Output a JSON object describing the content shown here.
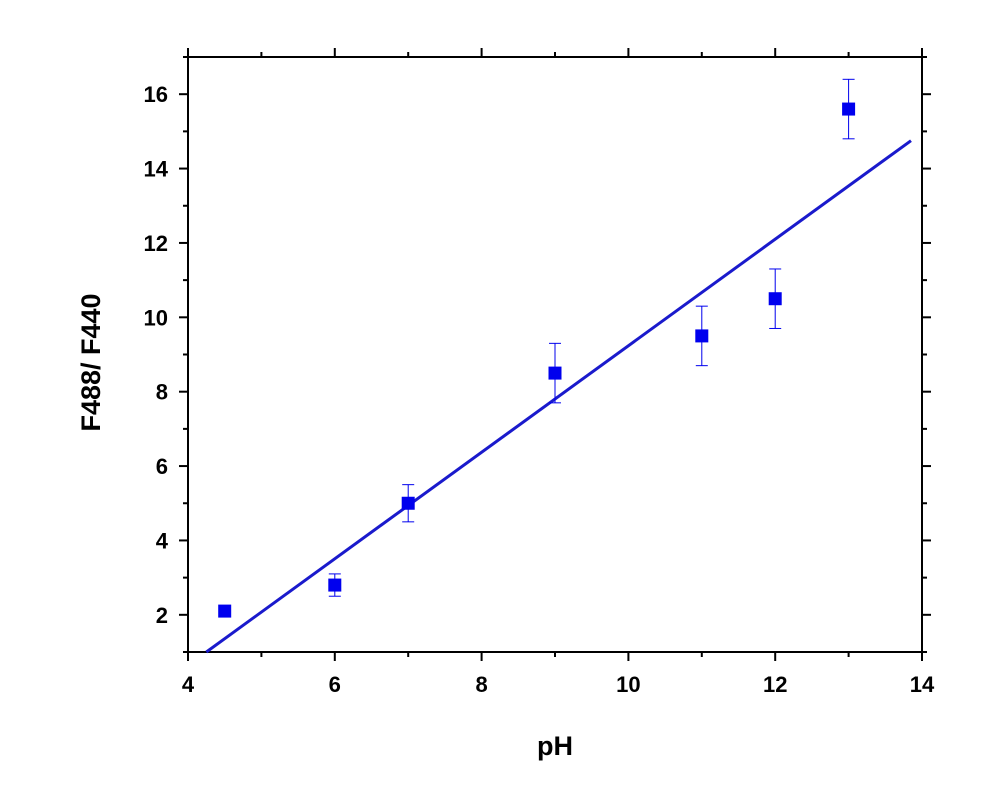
{
  "chart_data": {
    "type": "scatter",
    "title": "",
    "xlabel": "pH",
    "ylabel": "F488/ F440",
    "xlim": [
      4,
      14
    ],
    "ylim": [
      1,
      17
    ],
    "x_ticks": [
      4,
      6,
      8,
      10,
      12,
      14
    ],
    "y_ticks": [
      2,
      4,
      6,
      8,
      10,
      12,
      14,
      16
    ],
    "grid": false,
    "legend": "none",
    "series": [
      {
        "points": [
          {
            "x": 4.5,
            "y": 2.1,
            "err": 0.15
          },
          {
            "x": 6,
            "y": 2.8,
            "err": 0.3
          },
          {
            "x": 7,
            "y": 5.0,
            "err": 0.5
          },
          {
            "x": 9,
            "y": 8.5,
            "err": 0.8
          },
          {
            "x": 11,
            "y": 9.5,
            "err": 0.8
          },
          {
            "x": 12,
            "y": 10.5,
            "err": 0.8
          },
          {
            "x": 13,
            "y": 15.6,
            "err": 0.8
          }
        ],
        "color": "#0000ee"
      }
    ],
    "fit_line": {
      "x": [
        4.25,
        13.85
      ],
      "y": [
        1.0,
        14.75
      ],
      "color": "#1a1acc"
    }
  }
}
